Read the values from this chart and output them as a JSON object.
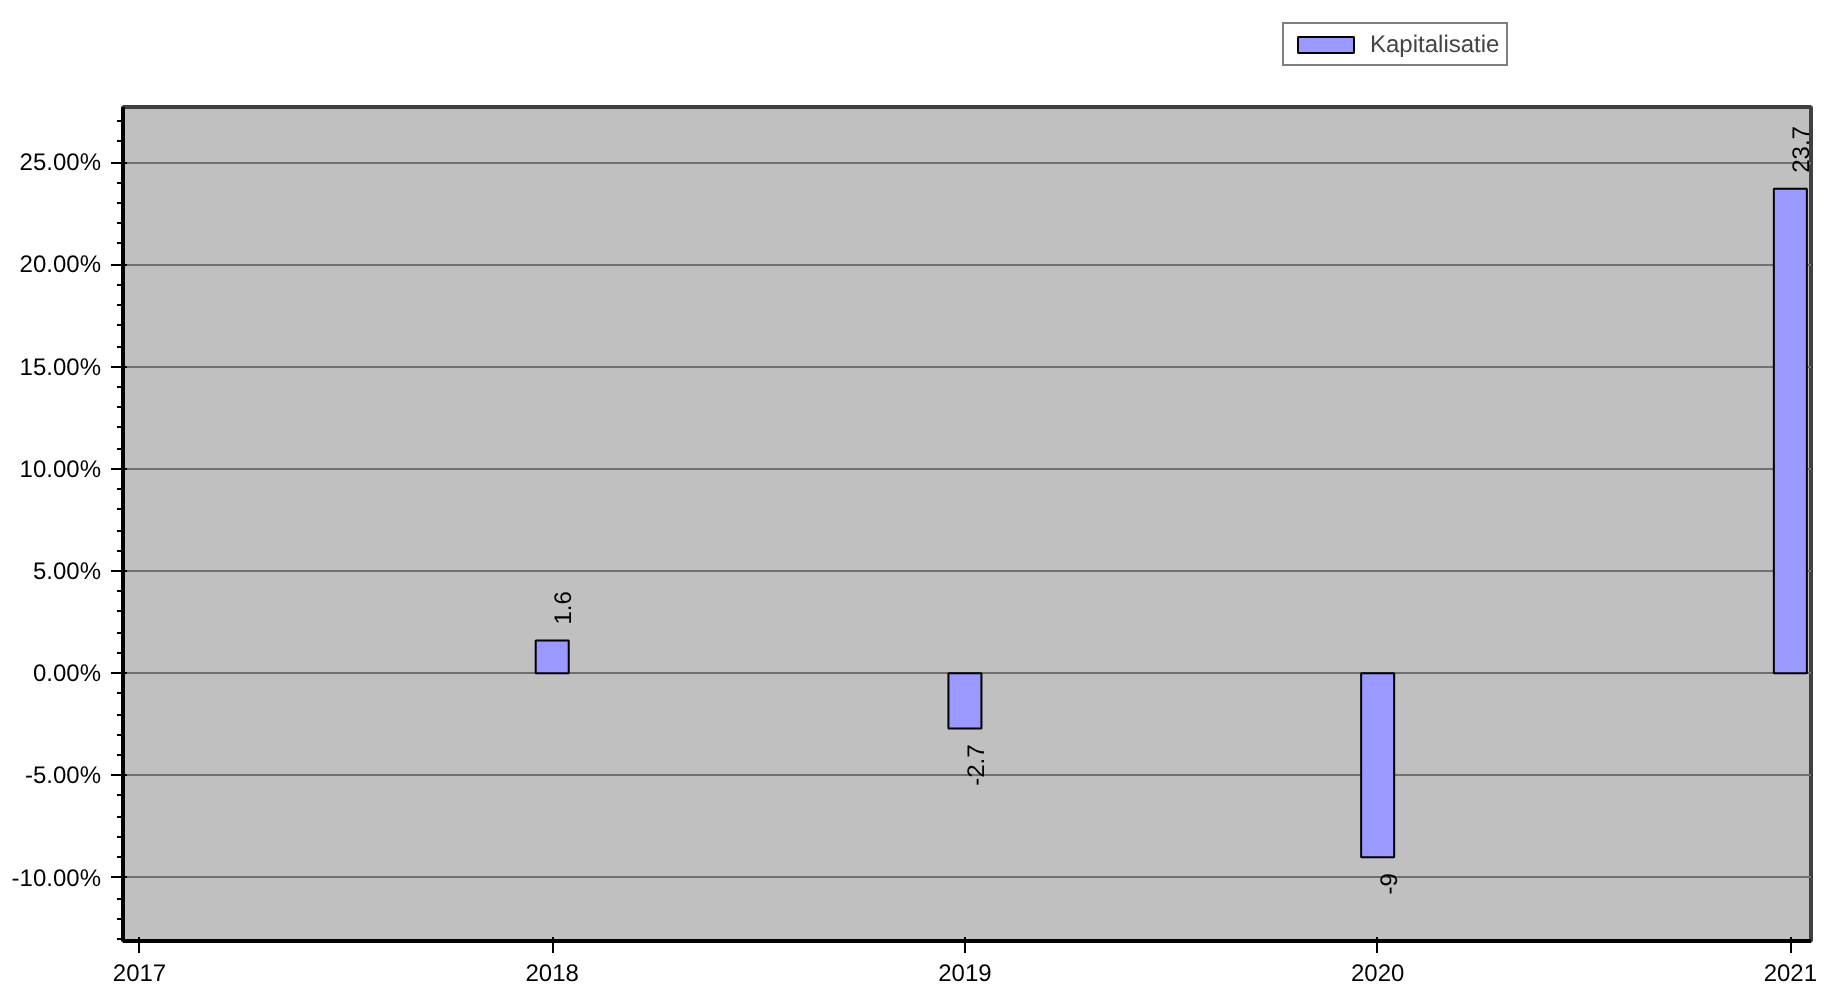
{
  "chart_data": {
    "type": "bar",
    "x": [
      2018,
      2019,
      2020,
      2021
    ],
    "series": [
      {
        "name": "Kapitalisatie",
        "color": "#9999ff",
        "values": [
          1.6,
          -2.7,
          -9,
          23.7
        ]
      }
    ],
    "xlim": [
      2016.96,
      2021.05
    ],
    "xticks": [
      2017,
      2018,
      2019,
      2020,
      2021
    ],
    "ylim": [
      -13.1,
      27.7
    ],
    "yticks": [
      {
        "value": -10,
        "label": "-10.00%"
      },
      {
        "value": -5,
        "label": "-5.00%"
      },
      {
        "value": 0,
        "label": "0.00%"
      },
      {
        "value": 5,
        "label": "5.00%"
      },
      {
        "value": 10,
        "label": "10.00%"
      },
      {
        "value": 15,
        "label": "15.00%"
      },
      {
        "value": 20,
        "label": "20.00%"
      },
      {
        "value": 25,
        "label": "25.00%"
      }
    ],
    "data_labels": true,
    "grid": "y",
    "legend": "top right"
  }
}
